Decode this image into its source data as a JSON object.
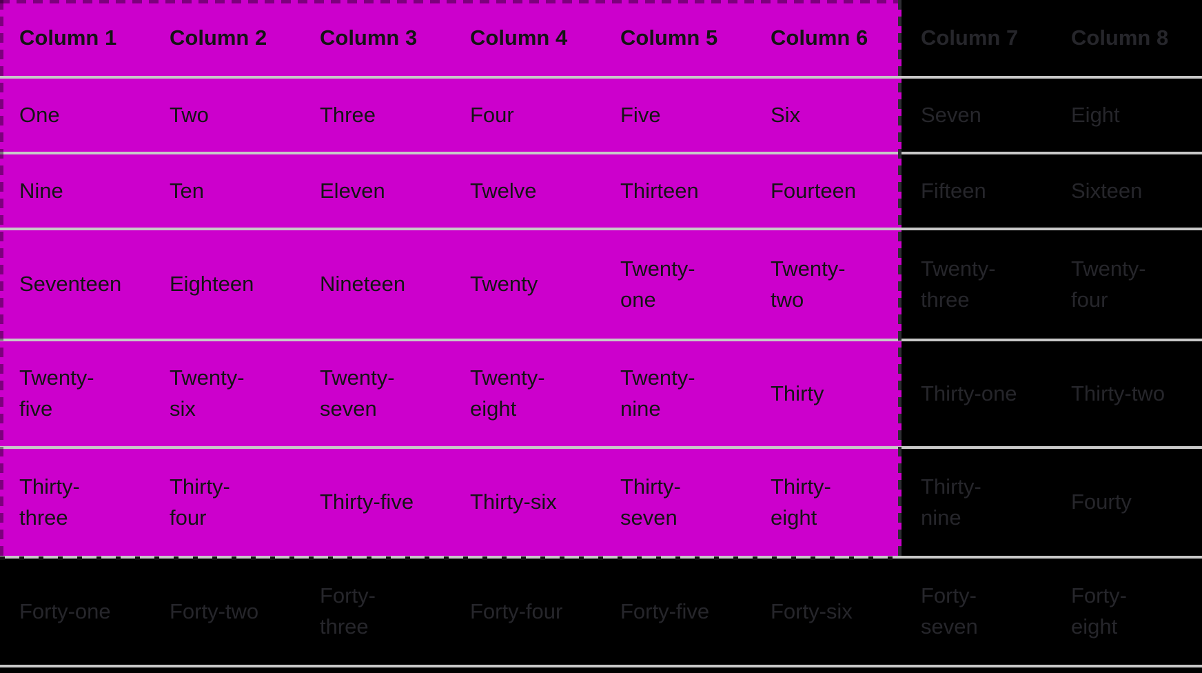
{
  "table": {
    "columns": [
      "Column 1",
      "Column 2",
      "Column 3",
      "Column 4",
      "Column 5",
      "Column 6",
      "Column 7",
      "Column 8"
    ],
    "rows": [
      [
        "One",
        "Two",
        "Three",
        "Four",
        "Five",
        "Six",
        "Seven",
        "Eight"
      ],
      [
        "Nine",
        "Ten",
        "Eleven",
        "Twelve",
        "Thirteen",
        "Fourteen",
        "Fifteen",
        "Sixteen"
      ],
      [
        "Seventeen",
        "Eighteen",
        "Nineteen",
        "Twenty",
        "Twenty-\none",
        "Twenty-\ntwo",
        "Twenty-\nthree",
        "Twenty-\nfour"
      ],
      [
        "Twenty-\nfive",
        "Twenty-\nsix",
        "Twenty-\nseven",
        "Twenty-\neight",
        "Twenty-\nnine",
        "Thirty",
        "Thirty-one",
        "Thirty-two"
      ],
      [
        "Thirty-\nthree",
        "Thirty-\nfour",
        "Thirty-five",
        "Thirty-six",
        "Thirty-\nseven",
        "Thirty-\neight",
        "Thirty-\nnine",
        "Fourty"
      ],
      [
        "Forty-one",
        "Forty-two",
        "Forty-\nthree",
        "Forty-four",
        "Forty-five",
        "Forty-six",
        "Forty-\nseven",
        "Forty-\neight"
      ]
    ]
  },
  "selection": {
    "col_count": 6,
    "row_count": 6,
    "includes_header": true,
    "first_cell": "Column 1",
    "last_cell": "Thirty-\neight"
  },
  "colors": {
    "highlight": "#cc00cc",
    "background": "#000000",
    "separator": "#c8c8c8",
    "text_on_highlight": "#141414",
    "text_on_background": "#26262b"
  }
}
